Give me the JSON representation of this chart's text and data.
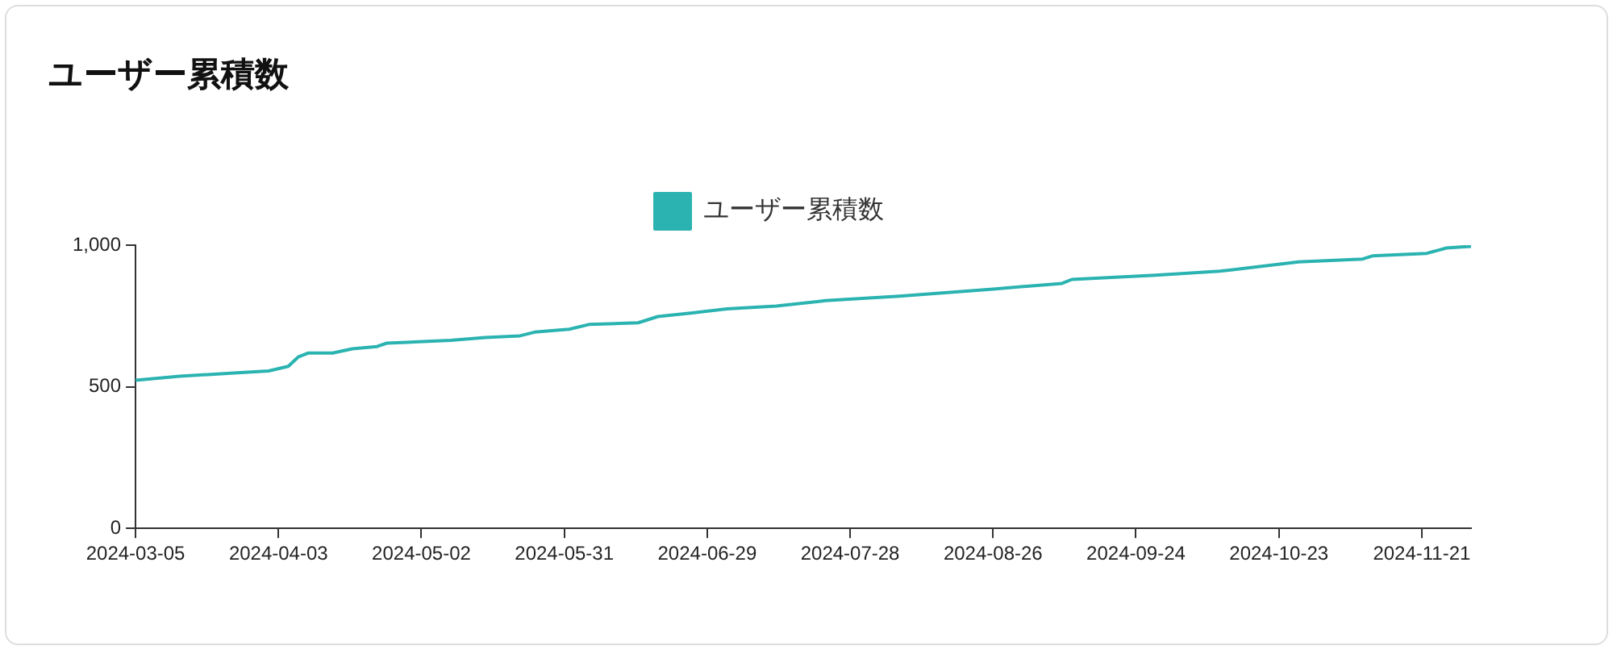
{
  "chart_data": {
    "type": "line",
    "title": "ユーザー累積数",
    "x": [
      "2024-03-05",
      "2024-03-14",
      "2024-03-25",
      "2024-04-01",
      "2024-04-05",
      "2024-04-07",
      "2024-04-09",
      "2024-04-14",
      "2024-04-18",
      "2024-04-23",
      "2024-04-25",
      "2024-05-08",
      "2024-05-15",
      "2024-05-22",
      "2024-05-25",
      "2024-06-01",
      "2024-06-05",
      "2024-06-15",
      "2024-06-19",
      "2024-06-26",
      "2024-07-03",
      "2024-07-13",
      "2024-07-23",
      "2024-08-07",
      "2024-08-26",
      "2024-09-09",
      "2024-09-11",
      "2024-09-28",
      "2024-10-11",
      "2024-10-27",
      "2024-11-09",
      "2024-11-11",
      "2024-11-22",
      "2024-11-26",
      "2024-12-01"
    ],
    "series": [
      {
        "name": "ユーザー累積数",
        "color": "#2ab3b1",
        "values": [
          523,
          537,
          549,
          556,
          572,
          605,
          619,
          619,
          634,
          642,
          654,
          664,
          674,
          680,
          693,
          703,
          720,
          726,
          748,
          761,
          775,
          785,
          804,
          820,
          845,
          865,
          879,
          894,
          908,
          941,
          951,
          962,
          971,
          990,
          996
        ]
      }
    ],
    "xlim": [
      "2024-03-05",
      "2024-12-01"
    ],
    "xticks": [
      "2024-03-05",
      "2024-04-03",
      "2024-05-02",
      "2024-05-31",
      "2024-06-29",
      "2024-07-28",
      "2024-08-26",
      "2024-09-24",
      "2024-10-23",
      "2024-11-21"
    ],
    "ylim": [
      0,
      1000
    ],
    "yticks": [
      0,
      500,
      {
        "value": 1000,
        "label": "1,000"
      }
    ],
    "grid": false,
    "legend": "top",
    "marker": "none",
    "line_style": "solid"
  }
}
